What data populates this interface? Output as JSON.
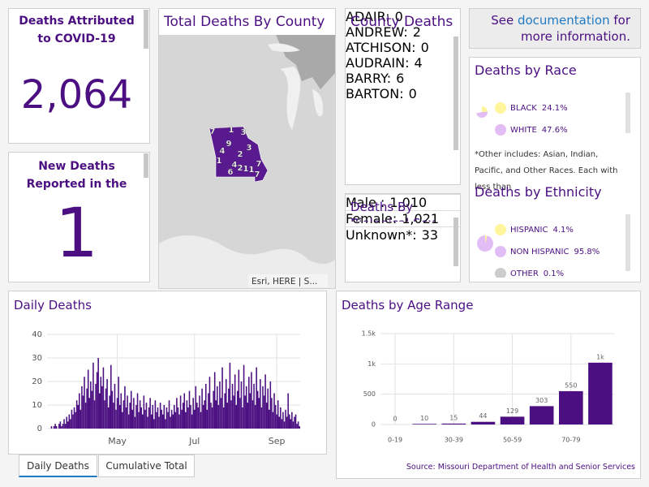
{
  "deaths_total": {
    "title": "Deaths Attributed to COVID-19",
    "value": "2,064"
  },
  "new_deaths": {
    "title": "New Deaths Reported in the Last",
    "value": "1"
  },
  "map": {
    "title": "Total Deaths By County",
    "labels": [
      "7",
      "1",
      "3",
      "4",
      "9",
      "2",
      "3",
      "1",
      "4",
      "2",
      "1",
      "1",
      "7",
      "6",
      "7"
    ],
    "attribution": "Esri, HERE | S..."
  },
  "county_deaths": {
    "title": "County Deaths",
    "rows": [
      {
        "name": "ADAIR:",
        "value": "0"
      },
      {
        "name": "ANDREW:",
        "value": "2"
      },
      {
        "name": "ATCHISON:",
        "value": "0"
      },
      {
        "name": "AUDRAIN:",
        "value": "4"
      },
      {
        "name": "BARRY:",
        "value": "6"
      },
      {
        "name": "BARTON:",
        "value": "0"
      }
    ]
  },
  "deaths_by_sex": {
    "title": "Deaths By Biological Sex",
    "rows": [
      {
        "label": "Male :",
        "value": "1,010"
      },
      {
        "label": "Female:",
        "value": "1,021"
      },
      {
        "label": "Unknown*:",
        "value": "33"
      }
    ]
  },
  "info": {
    "before": "See",
    "link": "documentation",
    "after": "for more information."
  },
  "race": {
    "title": "Deaths by Race",
    "items": [
      {
        "name": "BLACK",
        "value": 24.1,
        "label": "24.1%",
        "color": "#fff59a"
      },
      {
        "name": "WHITE",
        "value": 47.6,
        "label": "47.6%",
        "color": "#e2bdf5"
      }
    ],
    "note": "*Other includes: Asian, Indian, Pacific, and Other Races. Each with less than"
  },
  "ethnicity": {
    "title": "Deaths by Ethnicity",
    "items": [
      {
        "name": "HISPANIC",
        "value": 4.1,
        "label": "4.1%",
        "color": "#fff59a"
      },
      {
        "name": "NON HISPANIC",
        "value": 95.8,
        "label": "95.8%",
        "color": "#e2bdf5"
      },
      {
        "name": "OTHER",
        "value": 0.1,
        "label": "0.1%",
        "color": "#cccccc"
      }
    ]
  },
  "daily_deaths": {
    "type": "bar",
    "title": "Daily Deaths",
    "color": "#4b0f82",
    "grid": true,
    "ylim": [
      0,
      40
    ],
    "yticks": [
      0,
      10,
      20,
      30,
      40
    ],
    "categories": [
      null,
      null,
      null,
      null,
      null,
      null,
      null,
      null,
      null,
      null,
      null,
      null,
      null,
      null,
      null,
      null,
      null,
      null,
      null,
      null,
      null,
      null,
      null,
      null,
      null,
      null,
      null,
      null,
      null,
      null,
      null,
      null,
      null,
      null,
      null,
      null,
      null,
      null,
      null,
      null,
      null,
      null,
      null,
      null,
      null,
      null,
      null,
      null,
      null,
      null,
      null,
      null,
      null,
      null,
      null,
      "May",
      null,
      null,
      null,
      null,
      null,
      null,
      null,
      null,
      null,
      null,
      null,
      null,
      null,
      null,
      null,
      null,
      null,
      null,
      null,
      null,
      null,
      null,
      null,
      null,
      null,
      null,
      null,
      null,
      null,
      null,
      null,
      null,
      null,
      null,
      null,
      null,
      null,
      null,
      null,
      null,
      null,
      null,
      null,
      null,
      null,
      null,
      null,
      null,
      null,
      null,
      null,
      null,
      null,
      null,
      null,
      null,
      null,
      null,
      null,
      null,
      "Jul",
      null,
      null,
      null,
      null,
      null,
      null,
      null,
      null,
      null,
      null,
      null,
      null,
      null,
      null,
      null,
      null,
      null,
      null,
      null,
      null,
      null,
      null,
      null,
      null,
      null,
      null,
      null,
      null,
      null,
      null,
      null,
      null,
      null,
      null,
      null,
      null,
      null,
      null,
      null,
      null,
      null,
      null,
      null,
      null,
      null,
      null,
      null,
      null,
      null,
      null,
      null,
      null,
      null,
      null,
      null,
      null,
      null,
      null,
      null,
      null,
      null,
      null,
      null,
      null,
      "Sep",
      null,
      null,
      null,
      null,
      null,
      null,
      null,
      null,
      null,
      null,
      null,
      null,
      null,
      null,
      null,
      null,
      null,
      null
    ],
    "values": [
      0,
      0,
      0,
      1,
      0,
      1,
      2,
      1,
      0,
      2,
      3,
      1,
      2,
      4,
      2,
      5,
      3,
      6,
      4,
      8,
      6,
      9,
      7,
      12,
      10,
      15,
      8,
      18,
      14,
      22,
      11,
      17,
      25,
      13,
      20,
      16,
      28,
      12,
      19,
      24,
      30,
      15,
      22,
      18,
      26,
      12,
      17,
      21,
      9,
      14,
      27,
      16,
      11,
      19,
      8,
      13,
      22,
      10,
      15,
      7,
      12,
      18,
      9,
      14,
      6,
      11,
      16,
      8,
      13,
      5,
      10,
      15,
      7,
      12,
      9,
      6,
      14,
      8,
      11,
      5,
      9,
      13,
      6,
      10,
      4,
      12,
      7,
      9,
      5,
      11,
      8,
      6,
      10,
      4,
      9,
      7,
      12,
      5,
      8,
      6,
      10,
      7,
      13,
      9,
      6,
      14,
      8,
      11,
      15,
      7,
      12,
      9,
      16,
      10,
      6,
      13,
      8,
      18,
      11,
      9,
      14,
      7,
      17,
      10,
      12,
      19,
      8,
      15,
      22,
      11,
      9,
      16,
      24,
      12,
      18,
      10,
      20,
      13,
      26,
      9,
      15,
      21,
      11,
      17,
      28,
      12,
      19,
      14,
      23,
      10,
      16,
      25,
      13,
      20,
      9,
      27,
      14,
      18,
      11,
      22,
      15,
      24,
      12,
      19,
      10,
      26,
      16,
      13,
      21,
      9,
      18,
      14,
      23,
      11,
      17,
      8,
      20,
      13,
      7,
      15,
      10,
      6,
      12,
      5,
      9,
      4,
      7,
      3,
      8,
      5,
      15,
      6,
      4,
      7,
      3,
      5,
      6,
      2,
      3,
      1
    ]
  },
  "tabs": [
    "Daily Deaths",
    "Cumulative Total"
  ],
  "age": {
    "type": "bar",
    "title": "Deaths by Age Range",
    "color": "#4b0f82",
    "grid": true,
    "categories": [
      "0-19",
      null,
      "30-39",
      null,
      "50-59",
      null,
      "70-79",
      null
    ],
    "values": [
      0,
      10,
      15,
      44,
      129,
      303,
      550,
      1020
    ],
    "value_labels": [
      "0",
      "10",
      "15",
      "44",
      "129",
      "303",
      "550",
      "1k"
    ],
    "ylim": [
      0,
      1500
    ],
    "yticks": [
      0,
      500,
      {
        "value": 1000,
        "label": "1k"
      },
      {
        "value": 1500,
        "label": "1.5k"
      }
    ],
    "source": "Source: Missouri Department of Health and Senior Services"
  }
}
